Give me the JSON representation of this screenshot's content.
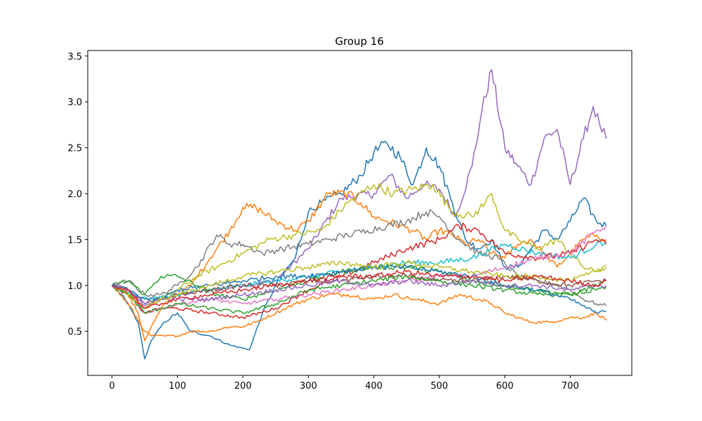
{
  "chart_data": {
    "type": "line",
    "title": "Group 16",
    "xlabel": "",
    "ylabel": "",
    "xlim": [
      -37,
      794
    ],
    "ylim": [
      0.02,
      3.56
    ],
    "xticks": [
      0,
      100,
      200,
      300,
      400,
      500,
      600,
      700
    ],
    "yticks": [
      0.5,
      1.0,
      1.5,
      2.0,
      2.5,
      3.0,
      3.5
    ],
    "xtick_labels": [
      "0",
      "100",
      "200",
      "300",
      "400",
      "500",
      "600",
      "700"
    ],
    "ytick_labels": [
      "0.5",
      "1.0",
      "1.5",
      "2.0",
      "2.5",
      "3.0",
      "3.5"
    ],
    "grid": false,
    "legend": false,
    "series": [
      {
        "color": "#9467bd",
        "x": [
          0,
          25,
          50,
          75,
          100,
          150,
          200,
          250,
          300,
          350,
          400,
          425,
          450,
          475,
          500,
          525,
          550,
          565,
          580,
          600,
          620,
          640,
          660,
          680,
          700,
          720,
          735,
          745,
          755
        ],
        "y": [
          1.0,
          0.95,
          0.78,
          0.85,
          0.9,
          0.95,
          1.0,
          1.05,
          1.4,
          1.95,
          2.0,
          2.2,
          1.95,
          2.1,
          2.05,
          1.75,
          2.3,
          2.9,
          3.35,
          2.5,
          2.3,
          2.1,
          2.6,
          2.7,
          2.1,
          2.6,
          2.95,
          2.75,
          2.6
        ]
      },
      {
        "color": "#1f77b4",
        "x": [
          0,
          20,
          40,
          50,
          60,
          80,
          100,
          120,
          150,
          180,
          210,
          230,
          250,
          280,
          300,
          320,
          350,
          380,
          400,
          420,
          440,
          460,
          480,
          500,
          520,
          540,
          560,
          580,
          600,
          620,
          640,
          660,
          680,
          700,
          720,
          740,
          755
        ],
        "y": [
          1.0,
          0.85,
          0.6,
          0.2,
          0.4,
          0.6,
          0.7,
          0.5,
          0.45,
          0.35,
          0.3,
          0.7,
          1.0,
          1.3,
          1.8,
          1.9,
          2.0,
          2.2,
          2.45,
          2.55,
          2.4,
          2.1,
          2.5,
          2.3,
          1.9,
          1.5,
          1.4,
          1.5,
          1.2,
          1.2,
          1.4,
          1.6,
          1.5,
          1.7,
          1.95,
          1.7,
          1.65
        ]
      },
      {
        "color": "#ff7f0e",
        "x": [
          0,
          20,
          40,
          50,
          60,
          80,
          100,
          120,
          150,
          180,
          200,
          220,
          250,
          280,
          300,
          330,
          360,
          380,
          400,
          420,
          440,
          460,
          480,
          500,
          520,
          540,
          560,
          580,
          600,
          620,
          640,
          660,
          680,
          700,
          720,
          740,
          755
        ],
        "y": [
          1.0,
          0.95,
          0.7,
          0.4,
          0.55,
          0.8,
          0.9,
          1.0,
          1.3,
          1.6,
          1.85,
          1.85,
          1.7,
          1.6,
          1.7,
          2.0,
          2.0,
          1.9,
          1.75,
          1.7,
          1.65,
          1.6,
          1.5,
          1.6,
          1.55,
          1.45,
          1.5,
          1.35,
          1.3,
          1.45,
          1.5,
          1.35,
          1.2,
          1.35,
          1.5,
          1.55,
          1.5
        ]
      },
      {
        "color": "#ff7f0e",
        "x": [
          0,
          25,
          50,
          60,
          80,
          100,
          120,
          150,
          180,
          200,
          220,
          250,
          280,
          300,
          330,
          360,
          400,
          430,
          460,
          500,
          530,
          560,
          580,
          600,
          620,
          640,
          670,
          700,
          720,
          740,
          755
        ],
        "y": [
          1.0,
          0.8,
          0.5,
          0.45,
          0.45,
          0.45,
          0.5,
          0.5,
          0.55,
          0.55,
          0.6,
          0.7,
          0.8,
          0.85,
          0.9,
          0.9,
          0.85,
          0.9,
          0.85,
          0.8,
          0.9,
          0.85,
          0.8,
          0.7,
          0.65,
          0.6,
          0.6,
          0.65,
          0.65,
          0.7,
          0.62
        ]
      },
      {
        "color": "#bcbd22",
        "x": [
          0,
          25,
          50,
          75,
          100,
          130,
          160,
          200,
          240,
          280,
          320,
          360,
          400,
          430,
          460,
          490,
          520,
          550,
          570,
          580,
          600,
          620,
          650,
          680,
          700,
          720,
          740,
          755
        ],
        "y": [
          1.0,
          0.9,
          0.75,
          0.85,
          0.95,
          1.1,
          1.2,
          1.35,
          1.5,
          1.55,
          1.6,
          1.9,
          2.1,
          2.0,
          2.05,
          2.1,
          1.8,
          1.75,
          1.9,
          2.0,
          1.6,
          1.5,
          1.4,
          1.5,
          1.35,
          1.2,
          1.15,
          1.2
        ]
      },
      {
        "color": "#7f7f7f",
        "x": [
          0,
          25,
          50,
          75,
          100,
          130,
          160,
          180,
          200,
          230,
          260,
          300,
          330,
          360,
          390,
          420,
          450,
          480,
          500,
          530,
          560,
          590,
          620,
          650,
          680,
          700,
          720,
          740,
          755
        ],
        "y": [
          1.0,
          1.05,
          0.9,
          0.9,
          1.0,
          1.2,
          1.55,
          1.45,
          1.45,
          1.35,
          1.4,
          1.45,
          1.5,
          1.55,
          1.6,
          1.65,
          1.7,
          1.8,
          1.75,
          1.5,
          1.35,
          1.3,
          1.1,
          1.05,
          1.0,
          0.95,
          0.85,
          0.8,
          0.78
        ]
      },
      {
        "color": "#17becf",
        "x": [
          0,
          30,
          60,
          100,
          150,
          200,
          250,
          300,
          350,
          400,
          450,
          500,
          550,
          600,
          650,
          700,
          740,
          755
        ],
        "y": [
          1.0,
          0.9,
          0.85,
          0.9,
          0.95,
          1.0,
          1.05,
          1.1,
          1.15,
          1.2,
          1.25,
          1.25,
          1.3,
          1.45,
          1.35,
          1.3,
          1.45,
          1.48
        ]
      },
      {
        "color": "#d62728",
        "x": [
          0,
          25,
          50,
          75,
          100,
          150,
          200,
          250,
          300,
          350,
          400,
          450,
          500,
          530,
          560,
          600,
          650,
          700,
          740,
          755
        ],
        "y": [
          1.0,
          0.9,
          0.7,
          0.75,
          0.75,
          0.7,
          0.65,
          0.75,
          0.95,
          1.1,
          1.25,
          1.4,
          1.5,
          1.65,
          1.6,
          1.35,
          1.3,
          1.35,
          1.5,
          1.45
        ]
      },
      {
        "color": "#2ca02c",
        "x": [
          0,
          25,
          50,
          75,
          100,
          130,
          160,
          200,
          250,
          300,
          350,
          400,
          450,
          500,
          550,
          600,
          650,
          700,
          740,
          755
        ],
        "y": [
          1.0,
          1.05,
          0.9,
          1.1,
          1.1,
          1.0,
          0.9,
          0.85,
          0.95,
          1.05,
          1.15,
          1.2,
          1.2,
          1.15,
          1.05,
          1.0,
          0.95,
          0.9,
          1.0,
          1.05
        ]
      },
      {
        "color": "#e377c2",
        "x": [
          0,
          25,
          50,
          75,
          100,
          150,
          200,
          250,
          300,
          350,
          400,
          450,
          500,
          550,
          600,
          650,
          700,
          740,
          755
        ],
        "y": [
          1.0,
          0.95,
          0.7,
          0.75,
          0.8,
          0.85,
          0.8,
          0.85,
          0.9,
          0.95,
          1.0,
          1.05,
          1.1,
          1.1,
          1.2,
          1.3,
          1.35,
          1.6,
          1.65
        ]
      },
      {
        "color": "#8c564b",
        "x": [
          0,
          25,
          50,
          75,
          100,
          150,
          200,
          250,
          300,
          350,
          400,
          450,
          500,
          550,
          600,
          650,
          700,
          740,
          755
        ],
        "y": [
          1.0,
          0.95,
          0.8,
          0.85,
          0.9,
          0.95,
          1.0,
          1.0,
          1.05,
          1.05,
          1.1,
          1.1,
          1.05,
          1.05,
          1.1,
          1.05,
          1.0,
          1.05,
          1.05
        ]
      },
      {
        "color": "#2ca02c",
        "x": [
          0,
          25,
          50,
          75,
          100,
          150,
          200,
          250,
          300,
          350,
          400,
          450,
          500,
          550,
          600,
          650,
          700,
          740,
          755
        ],
        "y": [
          1.0,
          0.9,
          0.7,
          0.75,
          0.8,
          0.75,
          0.7,
          0.8,
          0.95,
          1.0,
          1.05,
          1.1,
          1.05,
          1.0,
          0.95,
          0.9,
          0.9,
          0.95,
          0.98
        ]
      },
      {
        "color": "#1f77b4",
        "x": [
          0,
          25,
          50,
          75,
          100,
          150,
          200,
          250,
          300,
          350,
          400,
          450,
          500,
          550,
          600,
          650,
          700,
          740,
          755
        ],
        "y": [
          1.0,
          0.95,
          0.85,
          0.85,
          0.95,
          1.0,
          1.05,
          1.1,
          1.1,
          1.15,
          1.2,
          1.2,
          1.15,
          1.1,
          1.0,
          0.95,
          0.85,
          0.7,
          0.72
        ]
      },
      {
        "color": "#9467bd",
        "x": [
          0,
          25,
          50,
          75,
          100,
          150,
          200,
          250,
          300,
          350,
          400,
          450,
          500,
          550,
          600,
          650,
          700,
          740,
          755
        ],
        "y": [
          1.0,
          0.95,
          0.8,
          0.85,
          0.85,
          0.85,
          0.9,
          0.95,
          1.0,
          1.05,
          1.0,
          1.05,
          1.0,
          1.05,
          1.0,
          1.0,
          0.95,
          1.0,
          1.0
        ]
      },
      {
        "color": "#bcbd22",
        "x": [
          0,
          25,
          50,
          75,
          100,
          150,
          200,
          250,
          300,
          350,
          400,
          450,
          500,
          550,
          600,
          650,
          700,
          740,
          755
        ],
        "y": [
          1.0,
          0.9,
          0.75,
          0.85,
          0.9,
          1.0,
          1.1,
          1.15,
          1.2,
          1.25,
          1.2,
          1.25,
          1.2,
          1.15,
          1.1,
          1.1,
          1.05,
          1.15,
          1.22
        ]
      },
      {
        "color": "#d62728",
        "x": [
          0,
          25,
          50,
          75,
          100,
          150,
          200,
          250,
          300,
          350,
          400,
          450,
          500,
          550,
          600,
          650,
          700,
          740,
          755
        ],
        "y": [
          1.0,
          0.95,
          0.75,
          0.8,
          0.85,
          0.9,
          0.95,
          1.0,
          1.05,
          1.1,
          1.1,
          1.15,
          1.1,
          1.1,
          1.05,
          1.1,
          1.05,
          1.0,
          1.05
        ]
      }
    ]
  }
}
